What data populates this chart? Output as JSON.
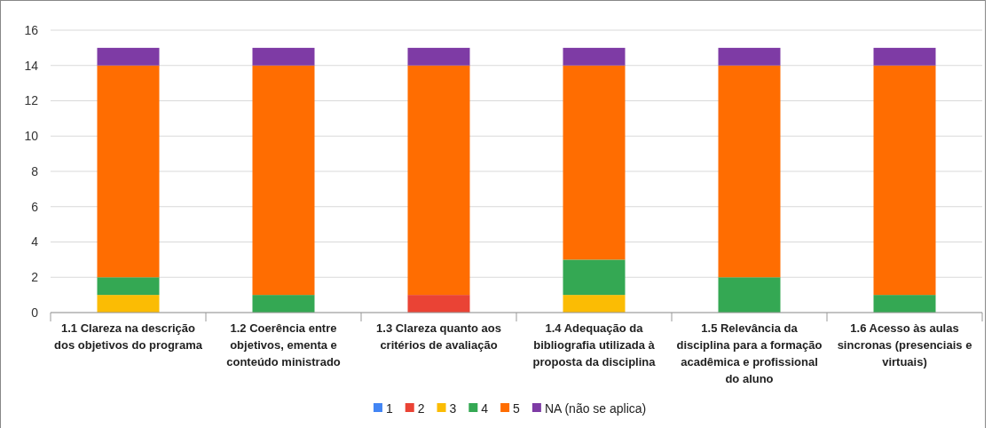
{
  "chart_data": {
    "type": "bar",
    "stacked": true,
    "categories": [
      "1.1 Clareza na descrição dos objetivos do programa",
      "1.2 Coerência entre objetivos, ementa e conteúdo ministrado",
      "1.3 Clareza quanto aos critérios de avaliação",
      "1.4 Adequação da bibliografia utilizada à proposta da disciplina",
      "1.5 Relevância da disciplina para a formação acadêmica e profissional do aluno",
      "1.6 Acesso às aulas sincronas (presenciais e virtuais)"
    ],
    "series": [
      {
        "name": "1",
        "color": "#4285f4",
        "values": [
          0,
          0,
          0,
          0,
          0,
          0
        ]
      },
      {
        "name": "2",
        "color": "#ea4335",
        "values": [
          0,
          0,
          1,
          0,
          0,
          0
        ]
      },
      {
        "name": "3",
        "color": "#fbbc04",
        "values": [
          1,
          0,
          0,
          1,
          0,
          0
        ]
      },
      {
        "name": "4",
        "color": "#34a853",
        "values": [
          1,
          1,
          0,
          2,
          2,
          1
        ]
      },
      {
        "name": "5",
        "color": "#ff6d01",
        "values": [
          12,
          13,
          13,
          11,
          12,
          13
        ]
      },
      {
        "name": "NA (não se aplica)",
        "color": "#7e3ba5",
        "values": [
          1,
          1,
          1,
          1,
          1,
          1
        ]
      }
    ],
    "ylim": [
      0,
      16
    ],
    "yticks": [
      0,
      2,
      4,
      6,
      8,
      10,
      12,
      14,
      16
    ],
    "grid": "y",
    "legend": "bottom"
  }
}
